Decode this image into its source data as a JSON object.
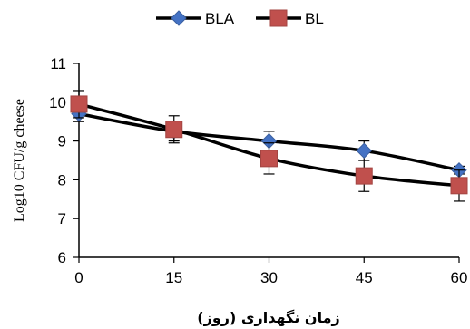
{
  "chart_data": {
    "type": "line",
    "x": [
      0,
      15,
      30,
      45,
      60
    ],
    "x_tick_labels": [
      "0",
      "15",
      "30",
      "45",
      "60"
    ],
    "y_tick_labels": [
      "6",
      "7",
      "8",
      "9",
      "10",
      "11"
    ],
    "xlim": [
      0,
      60
    ],
    "ylim": [
      6,
      11
    ],
    "xlabel": "زمان نگهداری (روز)",
    "ylabel": "Log10 CFU/g cheese",
    "grid": false,
    "legend_position": "top-center",
    "series": [
      {
        "name": "BLA",
        "marker": "diamond",
        "color": "#4472C4",
        "values": [
          9.7,
          9.25,
          9.0,
          8.75,
          8.25
        ],
        "errors": [
          0.2,
          0.25,
          0.25,
          0.25,
          0.1
        ]
      },
      {
        "name": "BL",
        "marker": "square",
        "color": "#C0504D",
        "values": [
          9.95,
          9.3,
          8.55,
          8.1,
          7.85
        ],
        "errors": [
          0.35,
          0.35,
          0.4,
          0.4,
          0.4
        ]
      }
    ]
  }
}
